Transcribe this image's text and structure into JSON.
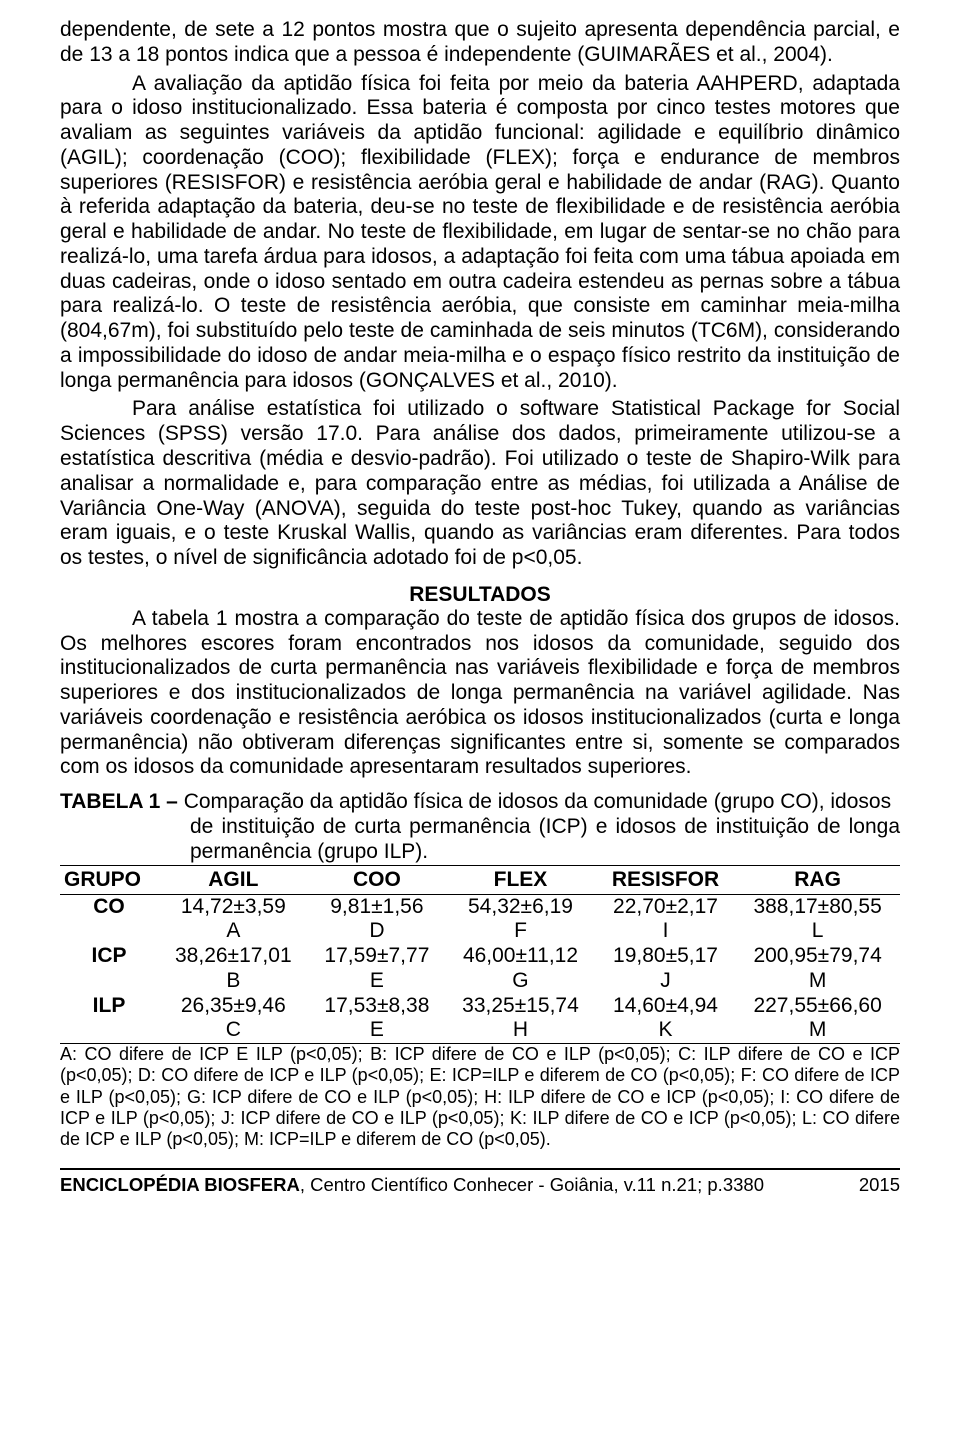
{
  "para1": "dependente, de sete a 12 pontos mostra que o sujeito apresenta dependência parcial, e de 13 a 18 pontos indica que a pessoa é independente (GUIMARÃES et al., 2004).",
  "para2": "A avaliação da aptidão física foi feita por meio da bateria AAHPERD, adaptada para o idoso institucionalizado. Essa bateria é composta por cinco testes motores que avaliam as seguintes variáveis da aptidão funcional: agilidade e equilíbrio dinâmico (AGIL); coordenação (COO); flexibilidade (FLEX); força e endurance de membros superiores (RESISFOR) e resistência aeróbia geral e habilidade de andar (RAG). Quanto à referida adaptação da bateria, deu-se no teste de flexibilidade e de resistência aeróbia geral e habilidade de andar. No teste de flexibilidade, em lugar de sentar-se no chão para realizá-lo, uma tarefa árdua para idosos, a adaptação foi feita com uma tábua apoiada em duas cadeiras, onde o idoso sentado em outra cadeira estendeu as pernas sobre a tábua para realizá-lo. O teste de resistência aeróbia, que consiste em caminhar meia-milha (804,67m), foi substituído pelo teste de caminhada de seis minutos (TC6M), considerando a impossibilidade do idoso de andar meia-milha e o espaço físico restrito da instituição de longa permanência para idosos (GONÇALVES et al., 2010).",
  "para3": "Para análise estatística foi utilizado o software Statistical Package for Social Sciences (SPSS) versão 17.0. Para análise dos dados, primeiramente utilizou-se a estatística descritiva (média e desvio-padrão). Foi utilizado o teste de Shapiro-Wilk para analisar a normalidade e, para comparação entre as médias, foi utilizada a Análise de Variância One-Way (ANOVA), seguida do teste post-hoc Tukey, quando as variâncias eram iguais, e o teste Kruskal Wallis, quando as variâncias eram diferentes. Para todos os testes, o nível de significância adotado foi de p<0,05.",
  "resultados_heading": "RESULTADOS",
  "para4": "A tabela 1 mostra a comparação do teste de aptidão física dos grupos de idosos. Os melhores escores foram encontrados nos idosos da comunidade, seguido dos institucionalizados de curta permanência nas variáveis flexibilidade e força de membros superiores e dos institucionalizados de longa permanência na variável agilidade. Nas variáveis coordenação e resistência aeróbica os idosos institucionalizados (curta e longa permanência) não obtiveram diferenças significantes entre si, somente se comparados com os idosos da comunidade apresentaram resultados superiores.",
  "table": {
    "caption_lead": "TABELA 1 – ",
    "caption_text_line1": "Comparação da aptidão física de idosos da comunidade (grupo CO), idosos",
    "caption_text_rest": "de instituição de curta permanência (ICP) e idosos de instituição de longa permanência (grupo ILP).",
    "columns": [
      "GRUPO",
      "AGIL",
      "COO",
      "FLEX",
      "RESISFOR",
      "RAG"
    ],
    "rows": [
      {
        "group": "CO",
        "AGIL": "14,72±3,59",
        "AGIL_l": "A",
        "COO": "9,81±1,56",
        "COO_l": "D",
        "FLEX": "54,32±6,19",
        "FLEX_l": "F",
        "RESISFOR": "22,70±2,17",
        "RESISFOR_l": "I",
        "RAG": "388,17±80,55",
        "RAG_l": "L"
      },
      {
        "group": "ICP",
        "AGIL": "38,26±17,01",
        "AGIL_l": "B",
        "COO": "17,59±7,77",
        "COO_l": "E",
        "FLEX": "46,00±11,12",
        "FLEX_l": "G",
        "RESISFOR": "19,80±5,17",
        "RESISFOR_l": "J",
        "RAG": "200,95±79,74",
        "RAG_l": "M"
      },
      {
        "group": "ILP",
        "AGIL": "26,35±9,46",
        "AGIL_l": "C",
        "COO": "17,53±8,38",
        "COO_l": "E",
        "FLEX": "33,25±15,74",
        "FLEX_l": "H",
        "RESISFOR": "14,60±4,94",
        "RESISFOR_l": "K",
        "RAG": "227,55±66,60",
        "RAG_l": "M"
      }
    ],
    "legend": "A: CO difere de ICP E ILP (p<0,05); B: ICP difere de CO e ILP (p<0,05); C: ILP difere de CO e ICP (p<0,05); D: CO difere de ICP e ILP (p<0,05); E: ICP=ILP e diferem de CO (p<0,05); F: CO difere de ICP e ILP (p<0,05); G: ICP difere de CO e ILP (p<0,05); H: ILP difere de CO e ICP (p<0,05); I: CO difere de ICP e ILP (p<0,05); J: ICP difere de CO e ILP (p<0,05); K: ILP difere de CO e ICP (p<0,05); L: CO difere de ICP e ILP (p<0,05); M: ICP=ILP e diferem de CO (p<0,05)."
  },
  "footer": {
    "source_bold": "ENCICLOPÉDIA BIOSFERA",
    "source_rest": ", Centro Científico Conhecer - Goiânia, v.11 n.21; p.",
    "page_num": "3380",
    "year": "2015"
  }
}
